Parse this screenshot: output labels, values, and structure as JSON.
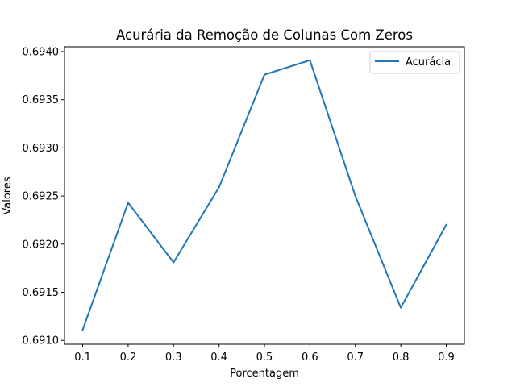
{
  "chart_data": {
    "type": "line",
    "title": "Acurária da Remoção de Colunas Com Zeros",
    "xlabel": "Porcentagem",
    "ylabel": "Valores",
    "x": [
      0.1,
      0.2,
      0.3,
      0.4,
      0.5,
      0.6,
      0.7,
      0.8,
      0.9
    ],
    "x_ticks": [
      "0.1",
      "0.2",
      "0.3",
      "0.4",
      "0.5",
      "0.6",
      "0.7",
      "0.8",
      "0.9"
    ],
    "y_ticks": [
      "0.6910",
      "0.6915",
      "0.6920",
      "0.6925",
      "0.6930",
      "0.6935",
      "0.6940"
    ],
    "series": [
      {
        "name": "Acurácia",
        "color": "#1f77b4",
        "values": [
          0.69111,
          0.69243,
          0.69181,
          0.69259,
          0.69376,
          0.69391,
          0.6925,
          0.69134,
          0.6922
        ]
      }
    ],
    "xlim": [
      0.06,
      0.94
    ],
    "ylim": [
      0.69096,
      0.69405
    ],
    "grid": false,
    "legend": "top-right"
  }
}
